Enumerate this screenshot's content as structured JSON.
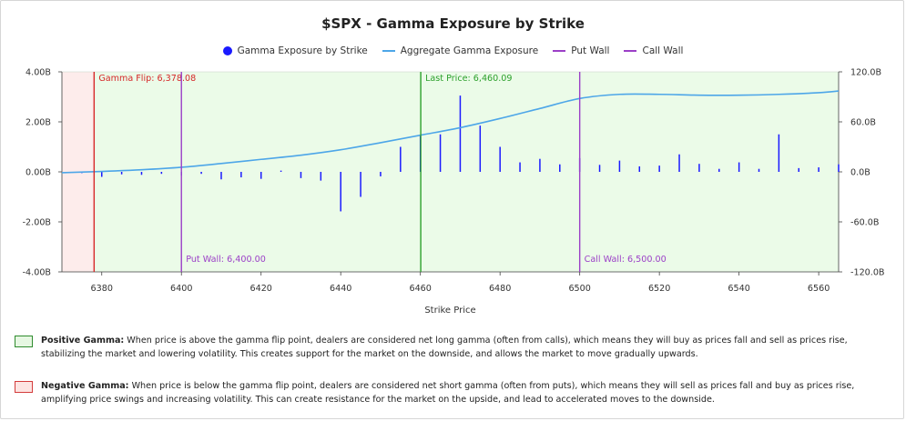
{
  "title": "$SPX - Gamma Exposure by Strike",
  "legend": [
    {
      "label": "Gamma Exposure by Strike",
      "color": "#1a1aff",
      "shape": "dot"
    },
    {
      "label": "Aggregate Gamma Exposure",
      "color": "#4da6e8",
      "shape": "line"
    },
    {
      "label": "Put Wall",
      "color": "#9b3fc7",
      "shape": "line"
    },
    {
      "label": "Call Wall",
      "color": "#9b3fc7",
      "shape": "line"
    }
  ],
  "colors": {
    "bars": "#1a1aff",
    "aggregate": "#4da6e8",
    "walls": "#9b3fc7",
    "gamma_flip": "#d62728",
    "last_price": "#2ca02c",
    "positive_bg": "#ebfbe8",
    "negative_bg": "#fdeceb"
  },
  "chart_data": {
    "type": "bar",
    "xlabel": "Strike Price",
    "ylabel": "",
    "xlim": [
      6370,
      6565
    ],
    "ylim": [
      -4.0,
      4.0
    ],
    "y2lim": [
      -120,
      120
    ],
    "x_ticks": [
      6380,
      6400,
      6420,
      6440,
      6460,
      6480,
      6500,
      6520,
      6540,
      6560
    ],
    "y_ticks": [
      4.0,
      2.0,
      0.0,
      -2.0,
      -4.0
    ],
    "y_tick_labels": [
      "4.00B",
      "2.00B",
      "0.00B",
      "-2.00B",
      "-4.00B"
    ],
    "y2_ticks": [
      120,
      60,
      0,
      -60,
      -120
    ],
    "y2_tick_labels": [
      "120.0B",
      "60.0B",
      "0.0B",
      "-60.0B",
      "-120.0B"
    ],
    "series": [
      {
        "name": "Gamma Exposure by Strike",
        "axis": "left",
        "x": [
          6375,
          6380,
          6385,
          6390,
          6395,
          6400,
          6405,
          6410,
          6415,
          6420,
          6425,
          6430,
          6435,
          6440,
          6445,
          6450,
          6455,
          6460,
          6465,
          6470,
          6475,
          6480,
          6485,
          6490,
          6495,
          6500,
          6505,
          6510,
          6515,
          6520,
          6525,
          6530,
          6535,
          6540,
          6545,
          6550,
          6555,
          6560,
          6565
        ],
        "values": [
          -0.05,
          -0.2,
          -0.1,
          -0.12,
          -0.08,
          -0.15,
          -0.08,
          -0.3,
          -0.22,
          -0.28,
          0.05,
          -0.25,
          -0.35,
          -1.58,
          -1.0,
          -0.18,
          1.0,
          1.45,
          1.5,
          3.05,
          1.85,
          1.0,
          0.38,
          0.52,
          0.3,
          0.55,
          0.28,
          0.45,
          0.22,
          0.25,
          0.7,
          0.32,
          0.12,
          0.38,
          0.12,
          1.5,
          0.15,
          0.18,
          0.3
        ]
      },
      {
        "name": "Aggregate Gamma Exposure",
        "axis": "right",
        "x": [
          6370,
          6380,
          6390,
          6400,
          6410,
          6420,
          6430,
          6440,
          6450,
          6460,
          6470,
          6480,
          6490,
          6500,
          6510,
          6520,
          6530,
          6540,
          6550,
          6560,
          6565
        ],
        "values": [
          -1,
          0.5,
          2.5,
          5.5,
          10,
          15,
          20,
          26.5,
          35,
          44,
          53,
          64,
          76,
          88,
          93,
          93,
          92,
          92,
          93,
          95,
          97
        ]
      }
    ],
    "vlines": [
      {
        "x": 6378.08,
        "label": "Gamma Flip: 6,378.08",
        "color": "#d62728",
        "label_pos": "top"
      },
      {
        "x": 6400,
        "label": "Put Wall: 6,400.00",
        "color": "#9b3fc7",
        "label_pos": "bottom"
      },
      {
        "x": 6460.09,
        "label": "Last Price: 6,460.09",
        "color": "#2ca02c",
        "label_pos": "top"
      },
      {
        "x": 6500,
        "label": "Call Wall: 6,500.00",
        "color": "#9b3fc7",
        "label_pos": "bottom"
      }
    ],
    "regions": [
      {
        "from": 6370,
        "to": 6378.08,
        "kind": "negative"
      },
      {
        "from": 6378.08,
        "to": 6565,
        "kind": "positive"
      }
    ]
  },
  "notes": [
    {
      "kind": "positive",
      "heading": "Positive Gamma:",
      "text": " When price is above the gamma flip point, dealers are considered net long gamma (often from calls), which means they will buy as prices fall and sell as prices rise, stabilizing the market and lowering volatility. This creates support for the market on the downside, and allows the market to move gradually upwards."
    },
    {
      "kind": "negative",
      "heading": "Negative Gamma:",
      "text": " When price is below the gamma flip point, dealers are considered net short gamma (often from puts), which means they will sell as prices fall and buy as prices rise, amplifying price swings and increasing volatility. This can create resistance for the market on the upside, and lead to accelerated moves to the downside."
    }
  ]
}
